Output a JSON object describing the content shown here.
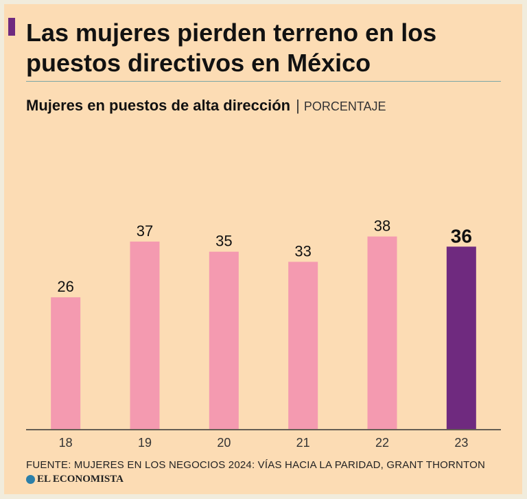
{
  "header": {
    "title_line1": "Las mujeres pierden terreno en los",
    "title_line2": "puestos directivos en México"
  },
  "chart_data": {
    "type": "bar",
    "title": "Mujeres en puestos de alta dirección",
    "unit": "PORCENTAJE",
    "categories": [
      "18",
      "19",
      "20",
      "21",
      "22",
      "23"
    ],
    "values": [
      26,
      37,
      35,
      33,
      38,
      36
    ],
    "highlight_index": 5,
    "ylim": [
      0,
      40
    ],
    "grid": false,
    "colors": {
      "bar": "#f49ab0",
      "highlight": "#6f2a7f"
    }
  },
  "footer": {
    "source": "FUENTE: MUJERES EN LOS NEGOCIOS 2024: VÍAS HACIA LA PARIDAD, GRANT THORNTON",
    "brand": "EL ECONOMISTA"
  }
}
